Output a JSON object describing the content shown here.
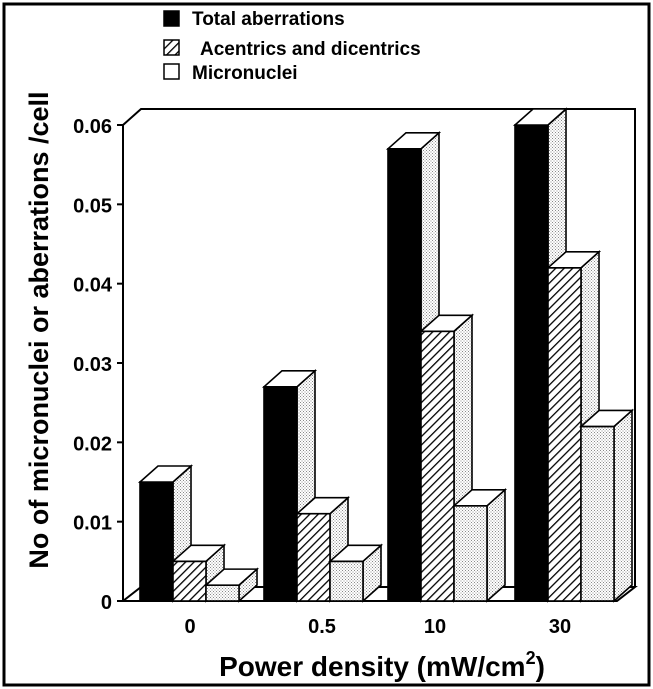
{
  "chart_data": {
    "type": "bar",
    "title": "",
    "xlabel": "Power density (mW/cm",
    "xlabel_sup": "2",
    "xlabel_close": ")",
    "ylabel": "No of micronuclei or aberrations /cell",
    "categories": [
      "0",
      "0.5",
      "10",
      "30"
    ],
    "series": [
      {
        "name": "Total aberrations",
        "values": [
          0.015,
          0.027,
          0.057,
          0.06
        ],
        "pattern": "solid"
      },
      {
        "name": "Acentrics and dicentrics",
        "values": [
          0.005,
          0.011,
          0.034,
          0.042
        ],
        "pattern": "hatch"
      },
      {
        "name": "Micronuclei",
        "values": [
          0.002,
          0.005,
          0.012,
          0.022
        ],
        "pattern": "dots"
      }
    ],
    "ylim": [
      0,
      0.06
    ],
    "yticks": [
      "0",
      "0.01",
      "0.02",
      "0.03",
      "0.04",
      "0.05",
      "0.06"
    ],
    "ytick_values": [
      0,
      0.01,
      0.02,
      0.03,
      0.04,
      0.05,
      0.06
    ],
    "legend_position": "top-left",
    "style": "3d",
    "grid": false,
    "colors": {
      "ink": "#000000",
      "paper": "#ffffff",
      "dots": "#8a8a8a"
    }
  }
}
